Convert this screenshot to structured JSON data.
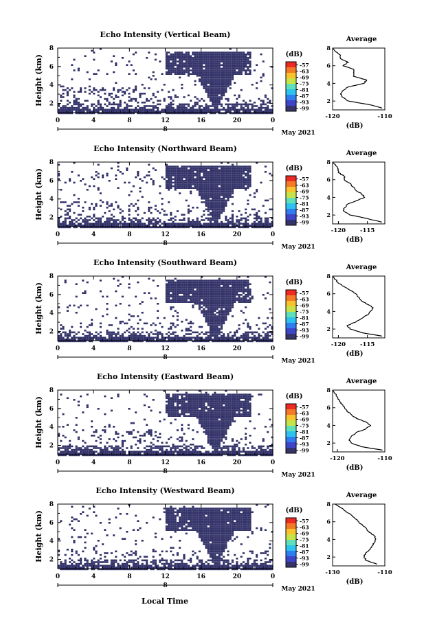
{
  "figure": {
    "xlabel": "Local Time",
    "colors": {
      "echo": "#34346a",
      "axis": "#000000",
      "background": "#ffffff"
    }
  },
  "colorbar": {
    "unit": "(dB)",
    "ticks": [
      "-57",
      "-63",
      "-69",
      "-75",
      "-81",
      "-87",
      "-93",
      "-99"
    ],
    "colors": [
      "#ed2a24",
      "#f57a28",
      "#f9c32c",
      "#c8e34a",
      "#5fe0b8",
      "#2ec3ee",
      "#2f7df0",
      "#3d46c8",
      "#34346a"
    ]
  },
  "chart_data": [
    {
      "type": "heatmap",
      "title": "Echo Intensity (Vertical Beam)",
      "ylabel": "Height (km)",
      "yticks": [
        "2",
        "4",
        "6",
        "8"
      ],
      "xticks": [
        "0",
        "4",
        "8",
        "12",
        "16",
        "20",
        "0"
      ],
      "date_label": "8",
      "month_label": "May 2021",
      "ylim": [
        1,
        8
      ],
      "xlim_hours": [
        0,
        24
      ],
      "profile": {
        "title": "Average",
        "xlabel": "(dB)",
        "xticks": [
          "-120",
          "-110"
        ],
        "xlim": [
          -120,
          -110
        ],
        "yticks": [
          "2",
          "4",
          "6",
          "8"
        ],
        "height": [
          1.2,
          1.6,
          2.0,
          2.4,
          2.8,
          3.2,
          3.6,
          4.0,
          4.4,
          4.8,
          5.2,
          5.6,
          6.0,
          6.4,
          6.8,
          7.2,
          7.6,
          8.0
        ],
        "value": [
          -110.5,
          -113,
          -117,
          -118,
          -118.5,
          -118,
          -117,
          -114,
          -113.5,
          -116,
          -116,
          -116,
          -118,
          -117,
          -118.5,
          -118.5,
          -119.5,
          -120
        ]
      }
    },
    {
      "type": "heatmap",
      "title": "Echo Intensity (Northward Beam)",
      "ylabel": "Height (km)",
      "yticks": [
        "2",
        "4",
        "6",
        "8"
      ],
      "xticks": [
        "0",
        "4",
        "8",
        "12",
        "16",
        "20",
        "0"
      ],
      "date_label": "8",
      "month_label": "May 2021",
      "ylim": [
        1,
        8
      ],
      "xlim_hours": [
        0,
        24
      ],
      "profile": {
        "title": "Average",
        "xlabel": "(dB)",
        "xticks": [
          "-120",
          "-115"
        ],
        "xlim": [
          -121,
          -112
        ],
        "yticks": [
          "2",
          "4",
          "6",
          "8"
        ],
        "height": [
          1.2,
          1.6,
          2.0,
          2.4,
          2.8,
          3.2,
          3.6,
          4.0,
          4.4,
          4.8,
          5.2,
          5.6,
          6.0,
          6.4,
          6.8,
          7.2,
          7.6,
          8.0
        ],
        "value": [
          -112.5,
          -115,
          -118,
          -119,
          -119,
          -118.5,
          -117,
          -115.5,
          -116,
          -117,
          -117.5,
          -118,
          -119,
          -119,
          -120,
          -120,
          -120.5,
          -121
        ]
      }
    },
    {
      "type": "heatmap",
      "title": "Echo Intensity (Southward Beam)",
      "ylabel": "Height (km)",
      "yticks": [
        "2",
        "4",
        "6",
        "8"
      ],
      "xticks": [
        "0",
        "4",
        "8",
        "12",
        "16",
        "20",
        "0"
      ],
      "date_label": "8",
      "month_label": "May 2021",
      "ylim": [
        1,
        8
      ],
      "xlim_hours": [
        0,
        24
      ],
      "profile": {
        "title": "Average",
        "xlabel": "(dB)",
        "xticks": [
          "-120",
          "-115"
        ],
        "xlim": [
          -121,
          -112
        ],
        "yticks": [
          "2",
          "4",
          "6",
          "8"
        ],
        "height": [
          1.2,
          1.6,
          2.0,
          2.4,
          2.8,
          3.2,
          3.6,
          4.0,
          4.4,
          4.8,
          5.2,
          5.6,
          6.0,
          6.4,
          6.8,
          7.2,
          7.6,
          8.0
        ],
        "value": [
          -112.5,
          -116,
          -118,
          -118.5,
          -117,
          -116,
          -115,
          -114.5,
          -114,
          -115,
          -116,
          -116.5,
          -117,
          -118,
          -119,
          -120,
          -120.5,
          -121
        ]
      }
    },
    {
      "type": "heatmap",
      "title": "Echo Intensity (Eastward Beam)",
      "ylabel": "Height (km)",
      "yticks": [
        "2",
        "4",
        "6",
        "8"
      ],
      "xticks": [
        "0",
        "4",
        "8",
        "12",
        "16",
        "20",
        "0"
      ],
      "date_label": "8",
      "month_label": "May 2021",
      "ylim": [
        1,
        8
      ],
      "xlim_hours": [
        0,
        24
      ],
      "profile": {
        "title": "Average",
        "xlabel": "(dB)",
        "xticks": [
          "-120",
          "-110"
        ],
        "xlim": [
          -121,
          -110
        ],
        "yticks": [
          "2",
          "4",
          "6",
          "8"
        ],
        "height": [
          1.2,
          1.6,
          2.0,
          2.4,
          2.8,
          3.2,
          3.6,
          4.0,
          4.4,
          4.8,
          5.2,
          5.6,
          6.0,
          6.4,
          6.8,
          7.2,
          7.6,
          8.0
        ],
        "value": [
          -110.5,
          -115,
          -117,
          -117.5,
          -117,
          -116,
          -114,
          -113,
          -114,
          -116,
          -117,
          -118,
          -118.5,
          -119,
          -119.5,
          -120,
          -120.5,
          -121
        ]
      }
    },
    {
      "type": "heatmap",
      "title": "Echo Intensity (Westward Beam)",
      "ylabel": "Height (km)",
      "yticks": [
        "2",
        "4",
        "6",
        "8"
      ],
      "xticks": [
        "0",
        "4",
        "8",
        "12",
        "16",
        "20",
        "0"
      ],
      "date_label": "8",
      "month_label": "May 2021",
      "ylim": [
        1,
        8
      ],
      "xlim_hours": [
        0,
        24
      ],
      "profile": {
        "title": "Average",
        "xlabel": "(dB)",
        "xticks": [
          "-130",
          "-110"
        ],
        "xlim": [
          -130,
          -110
        ],
        "yticks": [
          "2",
          "4",
          "6",
          "8"
        ],
        "height": [
          1.2,
          1.6,
          2.0,
          2.4,
          2.8,
          3.2,
          3.6,
          4.0,
          4.4,
          4.8,
          5.2,
          5.6,
          6.0,
          6.4,
          6.8,
          7.2,
          7.6,
          8.0
        ],
        "value": [
          -113,
          -117,
          -118,
          -117.5,
          -116,
          -115,
          -114,
          -113.5,
          -114,
          -116,
          -117,
          -118.5,
          -120,
          -121.5,
          -123,
          -125,
          -127,
          -129
        ]
      }
    }
  ]
}
